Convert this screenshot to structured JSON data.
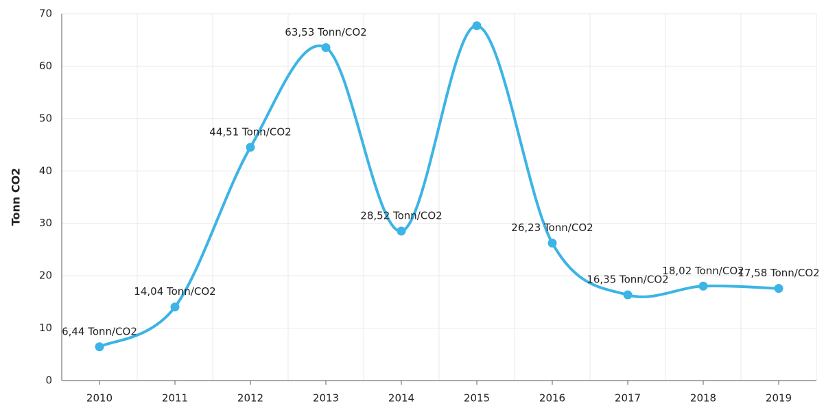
{
  "chart_data": {
    "type": "line",
    "y_label": "Tonn CO2",
    "categories": [
      "2010",
      "2011",
      "2012",
      "2013",
      "2014",
      "2015",
      "2016",
      "2017",
      "2018",
      "2019"
    ],
    "values": [
      6.44,
      14.04,
      44.51,
      63.53,
      28.52,
      67.7,
      26.23,
      16.35,
      18.02,
      17.58
    ],
    "value_labels": [
      "6,44 Tonn/CO2",
      "14,04 Tonn/CO2",
      "44,51 Tonn/CO2",
      "63,53 Tonn/CO2",
      "28,52 Tonn/CO2",
      null,
      "26,23 Tonn/CO2",
      "16,35 Tonn/CO2",
      "18,02 Tonn/CO2",
      "17,58 Tonn/CO2"
    ],
    "color": "#3cb4e5",
    "ylim": [
      0,
      70
    ],
    "yticks": [
      0,
      10,
      20,
      30,
      40,
      50,
      60,
      70
    ],
    "grid": true
  }
}
